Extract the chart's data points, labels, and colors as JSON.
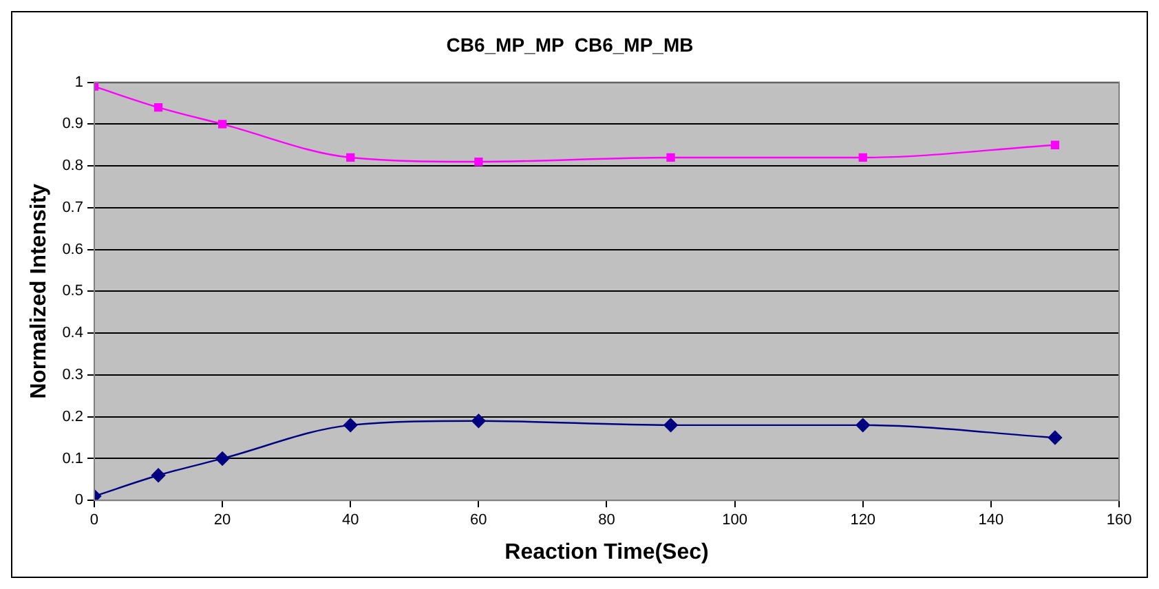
{
  "chart_data": {
    "type": "line",
    "title": "CB6_MP_MP  CB6_MP_MB",
    "xlabel": "Reaction Time(Sec)",
    "ylabel": "Normalized Intensity",
    "x": [
      0,
      10,
      20,
      40,
      60,
      90,
      120,
      150
    ],
    "series": [
      {
        "color": "#ff00ff",
        "marker": "square",
        "values": [
          0.99,
          0.94,
          0.9,
          0.82,
          0.81,
          0.82,
          0.82,
          0.85
        ]
      },
      {
        "color": "#000080",
        "marker": "diamond",
        "values": [
          0.01,
          0.06,
          0.1,
          0.18,
          0.19,
          0.18,
          0.18,
          0.15
        ]
      }
    ],
    "xlim": [
      0,
      160
    ],
    "xticks": [
      0,
      20,
      40,
      60,
      80,
      100,
      120,
      140,
      160
    ],
    "ylim": [
      0,
      1
    ],
    "yticks": [
      0,
      0.1,
      0.2,
      0.3,
      0.4,
      0.5,
      0.6,
      0.7,
      0.8,
      0.9,
      1
    ],
    "grid": "y",
    "legend": false
  }
}
